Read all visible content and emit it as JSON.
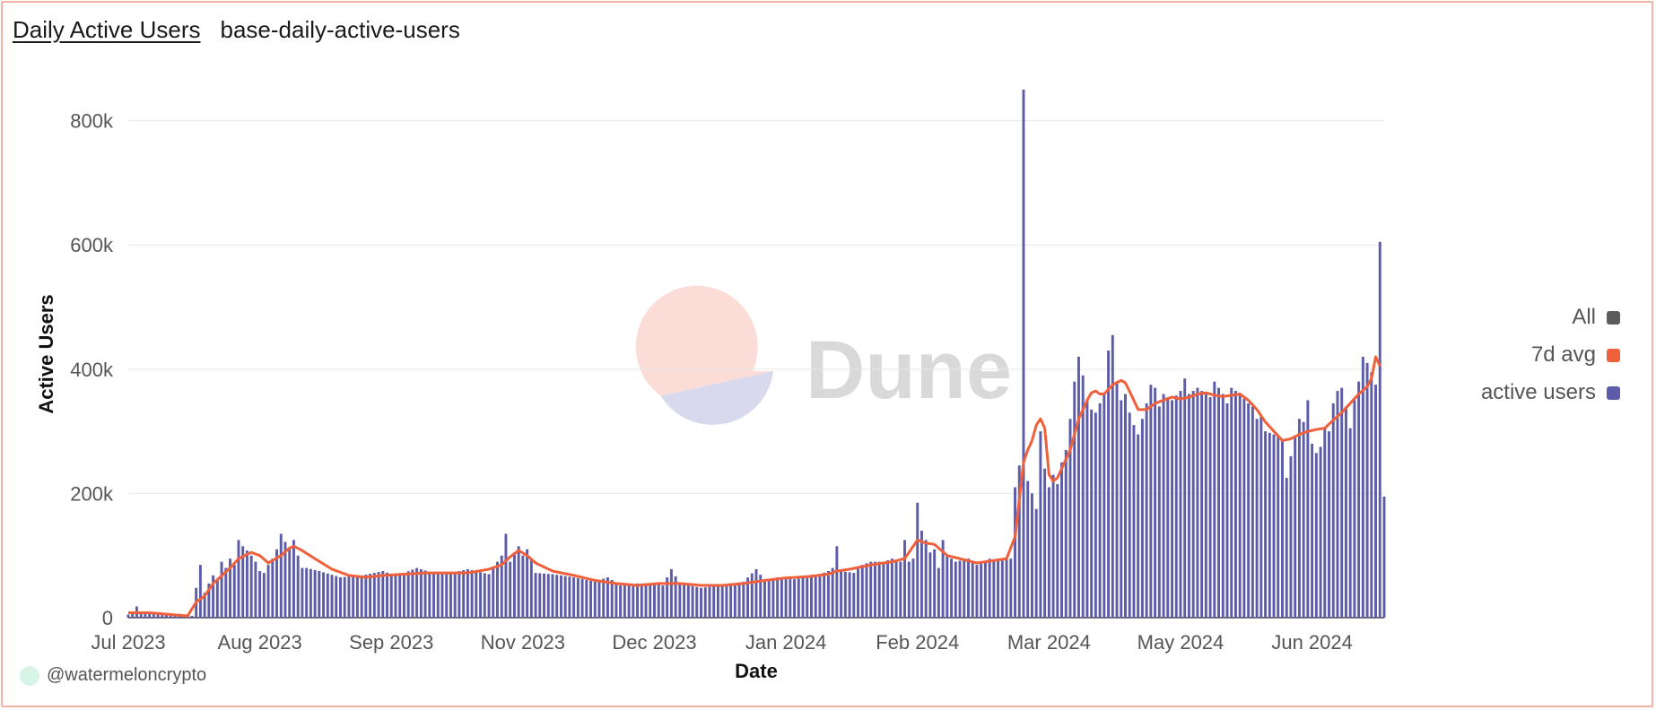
{
  "header": {
    "title": "Daily Active Users",
    "subtitle": "base-daily-active-users"
  },
  "watermark": {
    "text": "Dune"
  },
  "footer": {
    "author": "@watermeloncrypto"
  },
  "legend": [
    {
      "label": "All",
      "color": "#5c5c5c"
    },
    {
      "label": "7d avg",
      "color": "#f0603a"
    },
    {
      "label": "active users",
      "color": "#5d5ca8"
    }
  ],
  "colors": {
    "bars": "#5d5ca8",
    "avg_line": "#f0603a",
    "grid": "#e8e8e8"
  },
  "chart_data": {
    "type": "bar",
    "xlabel": "Date",
    "ylabel": "Active Users",
    "ylim": [
      0,
      850000
    ],
    "y_ticks": [
      {
        "value": 0,
        "label": "0"
      },
      {
        "value": 200000,
        "label": "200k"
      },
      {
        "value": 400000,
        "label": "400k"
      },
      {
        "value": 600000,
        "label": "600k"
      },
      {
        "value": 800000,
        "label": "800k"
      }
    ],
    "x_ticks": [
      {
        "index": 0,
        "label": "Jul 2023"
      },
      {
        "index": 31,
        "label": "Aug 2023"
      },
      {
        "index": 62,
        "label": "Sep 2023"
      },
      {
        "index": 93,
        "label": "Nov 2023"
      },
      {
        "index": 124,
        "label": "Dec 2023"
      },
      {
        "index": 155,
        "label": "Jan 2024"
      },
      {
        "index": 186,
        "label": "Feb 2024"
      },
      {
        "index": 217,
        "label": "Mar 2024"
      },
      {
        "index": 248,
        "label": "May 2024"
      },
      {
        "index": 279,
        "label": "Jun 2024"
      }
    ],
    "grid": true,
    "legend_position": "right",
    "keyframes": [
      [
        0,
        5000
      ],
      [
        1,
        8000
      ],
      [
        2,
        18000
      ],
      [
        3,
        10000
      ],
      [
        5,
        8000
      ],
      [
        8,
        6000
      ],
      [
        12,
        5000
      ],
      [
        14,
        4000
      ],
      [
        15,
        3000
      ],
      [
        16,
        48000
      ],
      [
        17,
        85000
      ],
      [
        18,
        40000
      ],
      [
        19,
        55000
      ],
      [
        20,
        68000
      ],
      [
        21,
        62000
      ],
      [
        22,
        90000
      ],
      [
        23,
        80000
      ],
      [
        24,
        95000
      ],
      [
        25,
        85000
      ],
      [
        26,
        125000
      ],
      [
        27,
        115000
      ],
      [
        28,
        108000
      ],
      [
        29,
        100000
      ],
      [
        30,
        90000
      ],
      [
        31,
        75000
      ],
      [
        32,
        72000
      ],
      [
        33,
        85000
      ],
      [
        34,
        95000
      ],
      [
        35,
        110000
      ],
      [
        36,
        135000
      ],
      [
        37,
        122000
      ],
      [
        38,
        112000
      ],
      [
        39,
        125000
      ],
      [
        40,
        100000
      ],
      [
        41,
        80000
      ],
      [
        42,
        80000
      ],
      [
        45,
        75000
      ],
      [
        50,
        65000
      ],
      [
        55,
        68000
      ],
      [
        58,
        72000
      ],
      [
        60,
        75000
      ],
      [
        62,
        70000
      ],
      [
        65,
        72000
      ],
      [
        68,
        80000
      ],
      [
        72,
        72000
      ],
      [
        76,
        72000
      ],
      [
        80,
        78000
      ],
      [
        85,
        70000
      ],
      [
        88,
        100000
      ],
      [
        89,
        135000
      ],
      [
        90,
        90000
      ],
      [
        91,
        105000
      ],
      [
        92,
        115000
      ],
      [
        93,
        100000
      ],
      [
        94,
        110000
      ],
      [
        95,
        95000
      ],
      [
        96,
        72000
      ],
      [
        100,
        70000
      ],
      [
        105,
        65000
      ],
      [
        110,
        58000
      ],
      [
        113,
        65000
      ],
      [
        116,
        52000
      ],
      [
        120,
        55000
      ],
      [
        124,
        55000
      ],
      [
        126,
        52000
      ],
      [
        128,
        78000
      ],
      [
        130,
        55000
      ],
      [
        135,
        48000
      ],
      [
        140,
        52000
      ],
      [
        145,
        58000
      ],
      [
        148,
        78000
      ],
      [
        150,
        60000
      ],
      [
        153,
        65000
      ],
      [
        157,
        62000
      ],
      [
        160,
        65000
      ],
      [
        163,
        70000
      ],
      [
        165,
        75000
      ],
      [
        166,
        80000
      ],
      [
        167,
        115000
      ],
      [
        168,
        75000
      ],
      [
        171,
        72000
      ],
      [
        173,
        85000
      ],
      [
        175,
        90000
      ],
      [
        178,
        90000
      ],
      [
        180,
        95000
      ],
      [
        182,
        90000
      ],
      [
        183,
        125000
      ],
      [
        184,
        90000
      ],
      [
        185,
        95000
      ],
      [
        186,
        185000
      ],
      [
        187,
        140000
      ],
      [
        188,
        125000
      ],
      [
        189,
        105000
      ],
      [
        190,
        110000
      ],
      [
        191,
        80000
      ],
      [
        192,
        125000
      ],
      [
        193,
        100000
      ],
      [
        195,
        90000
      ],
      [
        198,
        95000
      ],
      [
        200,
        85000
      ],
      [
        203,
        95000
      ],
      [
        206,
        92000
      ],
      [
        208,
        95000
      ],
      [
        209,
        210000
      ],
      [
        210,
        245000
      ],
      [
        211,
        850000
      ],
      [
        212,
        220000
      ],
      [
        213,
        200000
      ],
      [
        214,
        175000
      ],
      [
        215,
        300000
      ],
      [
        216,
        240000
      ],
      [
        217,
        210000
      ],
      [
        218,
        230000
      ],
      [
        219,
        215000
      ],
      [
        220,
        250000
      ],
      [
        221,
        270000
      ],
      [
        222,
        320000
      ],
      [
        223,
        380000
      ],
      [
        224,
        420000
      ],
      [
        225,
        390000
      ],
      [
        226,
        350000
      ],
      [
        227,
        335000
      ],
      [
        228,
        330000
      ],
      [
        230,
        360000
      ],
      [
        231,
        430000
      ],
      [
        232,
        455000
      ],
      [
        233,
        380000
      ],
      [
        234,
        350000
      ],
      [
        235,
        360000
      ],
      [
        236,
        330000
      ],
      [
        237,
        310000
      ],
      [
        238,
        295000
      ],
      [
        239,
        320000
      ],
      [
        240,
        345000
      ],
      [
        241,
        375000
      ],
      [
        242,
        370000
      ],
      [
        243,
        340000
      ],
      [
        244,
        360000
      ],
      [
        246,
        350000
      ],
      [
        248,
        365000
      ],
      [
        249,
        385000
      ],
      [
        250,
        360000
      ],
      [
        252,
        370000
      ],
      [
        255,
        355000
      ],
      [
        256,
        380000
      ],
      [
        258,
        360000
      ],
      [
        259,
        345000
      ],
      [
        260,
        370000
      ],
      [
        262,
        360000
      ],
      [
        264,
        345000
      ],
      [
        265,
        340000
      ],
      [
        266,
        320000
      ],
      [
        267,
        325000
      ],
      [
        268,
        300000
      ],
      [
        270,
        295000
      ],
      [
        272,
        288000
      ],
      [
        273,
        225000
      ],
      [
        274,
        260000
      ],
      [
        276,
        320000
      ],
      [
        277,
        315000
      ],
      [
        278,
        350000
      ],
      [
        279,
        280000
      ],
      [
        280,
        265000
      ],
      [
        281,
        275000
      ],
      [
        282,
        305000
      ],
      [
        283,
        300000
      ],
      [
        284,
        345000
      ],
      [
        285,
        365000
      ],
      [
        286,
        370000
      ],
      [
        287,
        340000
      ],
      [
        288,
        305000
      ],
      [
        289,
        350000
      ],
      [
        290,
        380000
      ],
      [
        291,
        420000
      ],
      [
        292,
        410000
      ],
      [
        293,
        395000
      ],
      [
        294,
        375000
      ],
      [
        295,
        605000
      ],
      [
        296,
        195000
      ]
    ],
    "avg_keyframes": [
      [
        0,
        8000
      ],
      [
        5,
        8000
      ],
      [
        10,
        5000
      ],
      [
        14,
        3000
      ],
      [
        16,
        25000
      ],
      [
        18,
        35000
      ],
      [
        20,
        55000
      ],
      [
        24,
        80000
      ],
      [
        26,
        95000
      ],
      [
        28,
        102000
      ],
      [
        29,
        105000
      ],
      [
        31,
        100000
      ],
      [
        33,
        88000
      ],
      [
        36,
        100000
      ],
      [
        38,
        112000
      ],
      [
        39,
        115000
      ],
      [
        41,
        108000
      ],
      [
        44,
        95000
      ],
      [
        48,
        78000
      ],
      [
        52,
        68000
      ],
      [
        56,
        65000
      ],
      [
        60,
        68000
      ],
      [
        65,
        70000
      ],
      [
        70,
        72000
      ],
      [
        75,
        72000
      ],
      [
        80,
        72000
      ],
      [
        85,
        78000
      ],
      [
        88,
        85000
      ],
      [
        90,
        98000
      ],
      [
        92,
        108000
      ],
      [
        94,
        100000
      ],
      [
        96,
        88000
      ],
      [
        100,
        75000
      ],
      [
        105,
        68000
      ],
      [
        110,
        60000
      ],
      [
        115,
        55000
      ],
      [
        120,
        52000
      ],
      [
        125,
        55000
      ],
      [
        130,
        55000
      ],
      [
        135,
        52000
      ],
      [
        140,
        52000
      ],
      [
        145,
        55000
      ],
      [
        150,
        60000
      ],
      [
        155,
        64000
      ],
      [
        160,
        66000
      ],
      [
        165,
        70000
      ],
      [
        167,
        75000
      ],
      [
        170,
        78000
      ],
      [
        175,
        85000
      ],
      [
        180,
        90000
      ],
      [
        183,
        95000
      ],
      [
        185,
        115000
      ],
      [
        186,
        125000
      ],
      [
        188,
        120000
      ],
      [
        190,
        118000
      ],
      [
        193,
        100000
      ],
      [
        196,
        95000
      ],
      [
        200,
        88000
      ],
      [
        204,
        92000
      ],
      [
        207,
        95000
      ],
      [
        209,
        130000
      ],
      [
        210,
        190000
      ],
      [
        211,
        250000
      ],
      [
        212,
        270000
      ],
      [
        213,
        285000
      ],
      [
        214,
        310000
      ],
      [
        215,
        320000
      ],
      [
        216,
        305000
      ],
      [
        217,
        230000
      ],
      [
        218,
        220000
      ],
      [
        219,
        225000
      ],
      [
        220,
        240000
      ],
      [
        222,
        270000
      ],
      [
        224,
        320000
      ],
      [
        226,
        350000
      ],
      [
        227,
        362000
      ],
      [
        228,
        365000
      ],
      [
        229,
        360000
      ],
      [
        230,
        360000
      ],
      [
        232,
        375000
      ],
      [
        234,
        382000
      ],
      [
        235,
        378000
      ],
      [
        237,
        350000
      ],
      [
        238,
        335000
      ],
      [
        240,
        335000
      ],
      [
        242,
        345000
      ],
      [
        244,
        350000
      ],
      [
        246,
        355000
      ],
      [
        248,
        352000
      ],
      [
        250,
        355000
      ],
      [
        252,
        360000
      ],
      [
        254,
        362000
      ],
      [
        256,
        358000
      ],
      [
        258,
        356000
      ],
      [
        260,
        358000
      ],
      [
        262,
        360000
      ],
      [
        264,
        350000
      ],
      [
        266,
        335000
      ],
      [
        268,
        315000
      ],
      [
        270,
        300000
      ],
      [
        272,
        285000
      ],
      [
        274,
        288000
      ],
      [
        276,
        295000
      ],
      [
        278,
        300000
      ],
      [
        280,
        303000
      ],
      [
        282,
        305000
      ],
      [
        284,
        318000
      ],
      [
        286,
        330000
      ],
      [
        288,
        345000
      ],
      [
        290,
        360000
      ],
      [
        292,
        372000
      ],
      [
        293,
        385000
      ],
      [
        294,
        420000
      ],
      [
        295,
        405000
      ]
    ]
  }
}
